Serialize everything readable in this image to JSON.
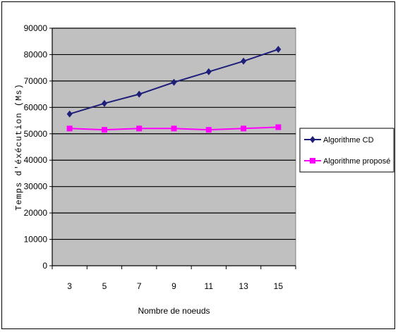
{
  "chart_data": {
    "type": "line",
    "title": "",
    "xlabel": "Nombre de noeuds",
    "ylabel": "Temps d'éxécution (Ms)",
    "categories": [
      "3",
      "5",
      "7",
      "9",
      "11",
      "13",
      "15"
    ],
    "ylim": [
      0,
      90000
    ],
    "yticks": [
      0,
      10000,
      20000,
      30000,
      40000,
      50000,
      60000,
      70000,
      80000,
      90000
    ],
    "grid": true,
    "legend_position": "right",
    "plot_background": "#c0c0c0",
    "series": [
      {
        "name": "Algorithme CD",
        "color": "#1f1f7a",
        "marker": "diamond",
        "values": [
          57500,
          61500,
          65000,
          69500,
          73500,
          77500,
          82000
        ]
      },
      {
        "name": "Algorithme proposé",
        "color": "#ff00ff",
        "marker": "square",
        "values": [
          52000,
          51500,
          52000,
          52000,
          51500,
          52000,
          52500
        ]
      }
    ]
  }
}
